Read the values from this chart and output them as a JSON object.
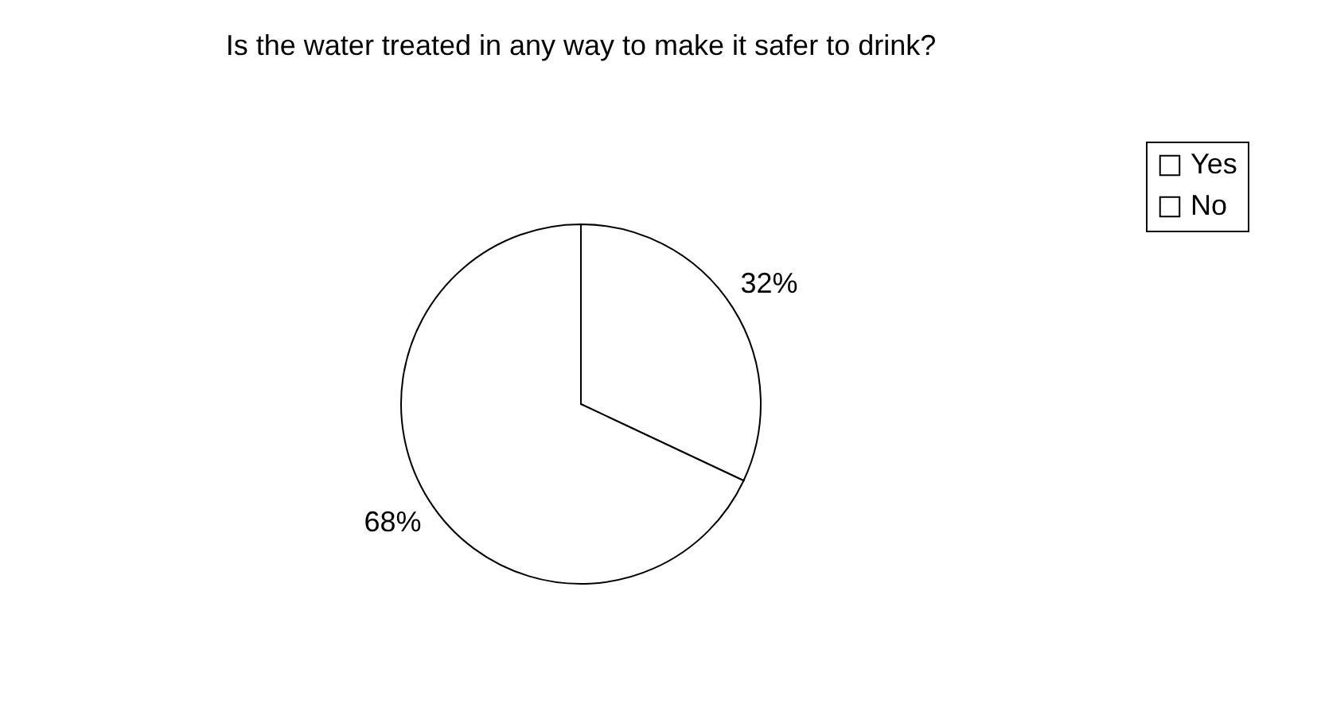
{
  "chart_data": {
    "type": "pie",
    "title": "Is the water treated in any way to make it safer to drink?",
    "categories": [
      "Yes",
      "No"
    ],
    "values": [
      32,
      68
    ],
    "colors": [
      "#ffffff",
      "#ffffff"
    ],
    "value_labels": [
      "32%",
      "68%"
    ],
    "legend": "right"
  }
}
